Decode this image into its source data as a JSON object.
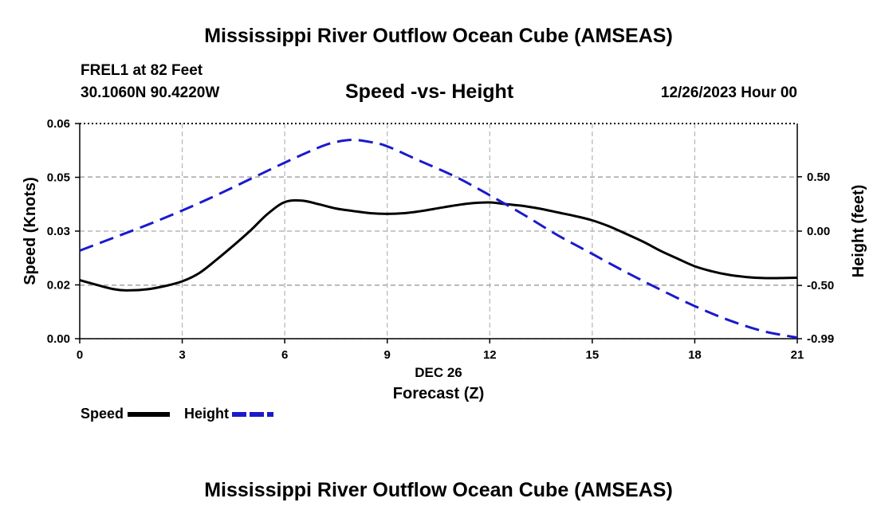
{
  "page_title_top": "Mississippi River Outflow Ocean Cube (AMSEAS)",
  "page_title_bottom": "Mississippi River Outflow Ocean Cube (AMSEAS)",
  "station": {
    "name_depth": "FREL1 at 82 Feet",
    "coords": "30.1060N  90.4220W",
    "datetime": "12/26/2023 Hour 00"
  },
  "colors": {
    "speed": "#000000",
    "height": "#1a1acc",
    "grid": "#b4b4b4"
  },
  "chart_data": {
    "type": "line",
    "title": "Speed -vs- Height",
    "xlabel": "Forecast (Z)",
    "date_label": "DEC 26",
    "ylabel": "Speed (Knots)",
    "y2label": "Height (feet)",
    "xlim": [
      0,
      21
    ],
    "ylim": [
      0,
      0.06
    ],
    "y2lim": [
      -0.99,
      0.99
    ],
    "x_ticks": [
      0,
      3,
      6,
      9,
      12,
      15,
      18,
      21
    ],
    "x_tick_labels": [
      "0",
      "3",
      "6",
      "9",
      "12",
      "15",
      "18",
      "21"
    ],
    "y_ticks": [
      0,
      0.015,
      0.03,
      0.045,
      0.06
    ],
    "y_tick_labels": [
      "0.00",
      "0.02",
      "0.03",
      "0.05",
      "0.06"
    ],
    "y2_ticks": [
      -0.99,
      -0.5,
      0,
      0.5
    ],
    "y2_tick_labels": [
      "-0.99",
      "-0.50",
      "0.00",
      "0.50"
    ],
    "grid": true,
    "series": [
      {
        "name": "Speed",
        "axis": "left",
        "style": "solid",
        "x": [
          0,
          1,
          1.5,
          2,
          2.5,
          3,
          3.5,
          4,
          4.5,
          5,
          5.5,
          6,
          6.5,
          7,
          7.5,
          8,
          8.5,
          9,
          9.5,
          10,
          10.5,
          11,
          11.5,
          12,
          12.5,
          13,
          13.5,
          14,
          14.5,
          15,
          15.5,
          16,
          16.5,
          17,
          17.5,
          18,
          18.5,
          19,
          19.5,
          20,
          20.5,
          21
        ],
        "values": [
          0.0163,
          0.0138,
          0.0135,
          0.0138,
          0.0147,
          0.016,
          0.0183,
          0.022,
          0.026,
          0.0302,
          0.0348,
          0.0381,
          0.0385,
          0.0375,
          0.0363,
          0.0356,
          0.035,
          0.0348,
          0.035,
          0.0356,
          0.0364,
          0.0372,
          0.0378,
          0.038,
          0.0375,
          0.037,
          0.0362,
          0.0352,
          0.0342,
          0.033,
          0.0313,
          0.0292,
          0.027,
          0.0245,
          0.0223,
          0.0202,
          0.0188,
          0.0178,
          0.0172,
          0.0169,
          0.0169,
          0.017
        ]
      },
      {
        "name": "Height",
        "axis": "right",
        "style": "dashed",
        "x": [
          0,
          1,
          2,
          3,
          4,
          5,
          6,
          7,
          7.5,
          8,
          8.5,
          9,
          10,
          11,
          12,
          13,
          14,
          15,
          16,
          17,
          18,
          19,
          20,
          21
        ],
        "values": [
          -0.18,
          -0.06,
          0.06,
          0.19,
          0.33,
          0.48,
          0.63,
          0.77,
          0.82,
          0.84,
          0.82,
          0.78,
          0.64,
          0.5,
          0.33,
          0.15,
          -0.04,
          -0.21,
          -0.38,
          -0.54,
          -0.69,
          -0.82,
          -0.92,
          -0.98
        ]
      }
    ],
    "legend": [
      "Speed",
      "Height"
    ]
  }
}
